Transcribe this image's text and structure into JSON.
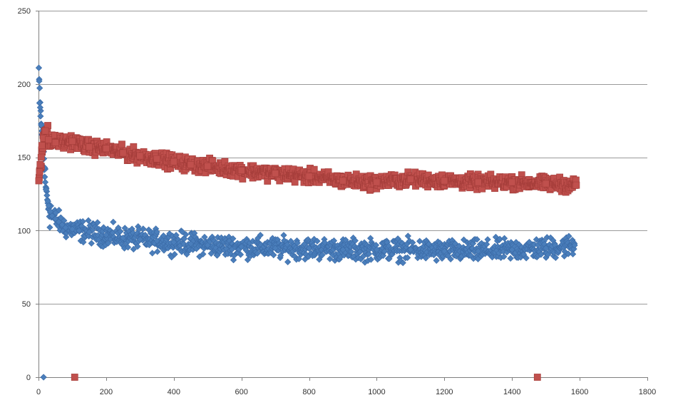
{
  "chart_data": {
    "type": "scatter",
    "title": "",
    "xlabel": "",
    "ylabel": "",
    "xlim": [
      0,
      1800
    ],
    "ylim": [
      0,
      250
    ],
    "x_ticks": [
      0,
      200,
      400,
      600,
      800,
      1000,
      1200,
      1400,
      1600,
      1800
    ],
    "y_ticks": [
      0,
      50,
      100,
      150,
      200,
      250
    ],
    "grid": {
      "horizontal": true,
      "vertical": false
    },
    "legend": "none",
    "series": [
      {
        "marker": "diamond",
        "color": "#4a7ebb",
        "outline": "#3a6aa6",
        "points": [
          [
            1,
            211
          ],
          [
            2,
            202
          ],
          [
            3,
            187
          ],
          [
            5,
            184
          ],
          [
            6,
            178
          ],
          [
            8,
            172
          ],
          [
            10,
            168
          ],
          [
            12,
            165
          ],
          [
            15,
            0
          ],
          [
            16,
            149
          ],
          [
            18,
            143
          ],
          [
            20,
            133
          ],
          [
            22,
            128
          ],
          [
            25,
            124
          ],
          [
            28,
            120
          ],
          [
            30,
            117
          ],
          [
            35,
            113
          ],
          [
            40,
            110
          ],
          [
            50,
            108
          ],
          [
            60,
            106
          ],
          [
            70,
            104
          ],
          [
            80,
            102
          ],
          [
            100,
            101
          ],
          [
            120,
            100
          ],
          [
            150,
            99
          ],
          [
            200,
            97
          ],
          [
            250,
            95
          ],
          [
            300,
            94
          ],
          [
            350,
            93
          ],
          [
            400,
            92
          ],
          [
            450,
            91
          ],
          [
            500,
            90
          ],
          [
            600,
            89
          ],
          [
            700,
            88
          ],
          [
            800,
            88
          ],
          [
            900,
            87
          ],
          [
            1000,
            87
          ],
          [
            1100,
            87
          ],
          [
            1200,
            86
          ],
          [
            1300,
            86
          ],
          [
            1400,
            87
          ],
          [
            1500,
            88
          ],
          [
            1585,
            90
          ]
        ],
        "band_halfwidth": 8
      },
      {
        "marker": "square",
        "color": "#c0504d",
        "outline": "#a33c39",
        "points": [
          [
            1,
            134
          ],
          [
            3,
            140
          ],
          [
            5,
            145
          ],
          [
            8,
            150
          ],
          [
            10,
            158
          ],
          [
            15,
            163
          ],
          [
            20,
            168
          ],
          [
            30,
            162
          ],
          [
            50,
            160
          ],
          [
            100,
            161
          ],
          [
            107,
            0
          ],
          [
            150,
            157
          ],
          [
            200,
            156
          ],
          [
            250,
            153
          ],
          [
            300,
            151
          ],
          [
            350,
            149
          ],
          [
            400,
            147
          ],
          [
            450,
            145
          ],
          [
            500,
            144
          ],
          [
            600,
            141
          ],
          [
            700,
            139
          ],
          [
            800,
            137
          ],
          [
            900,
            134
          ],
          [
            1000,
            133
          ],
          [
            1100,
            135
          ],
          [
            1200,
            134
          ],
          [
            1300,
            133
          ],
          [
            1400,
            133
          ],
          [
            1475,
            0
          ],
          [
            1500,
            132
          ],
          [
            1590,
            131
          ]
        ],
        "band_halfwidth": 5
      }
    ]
  }
}
